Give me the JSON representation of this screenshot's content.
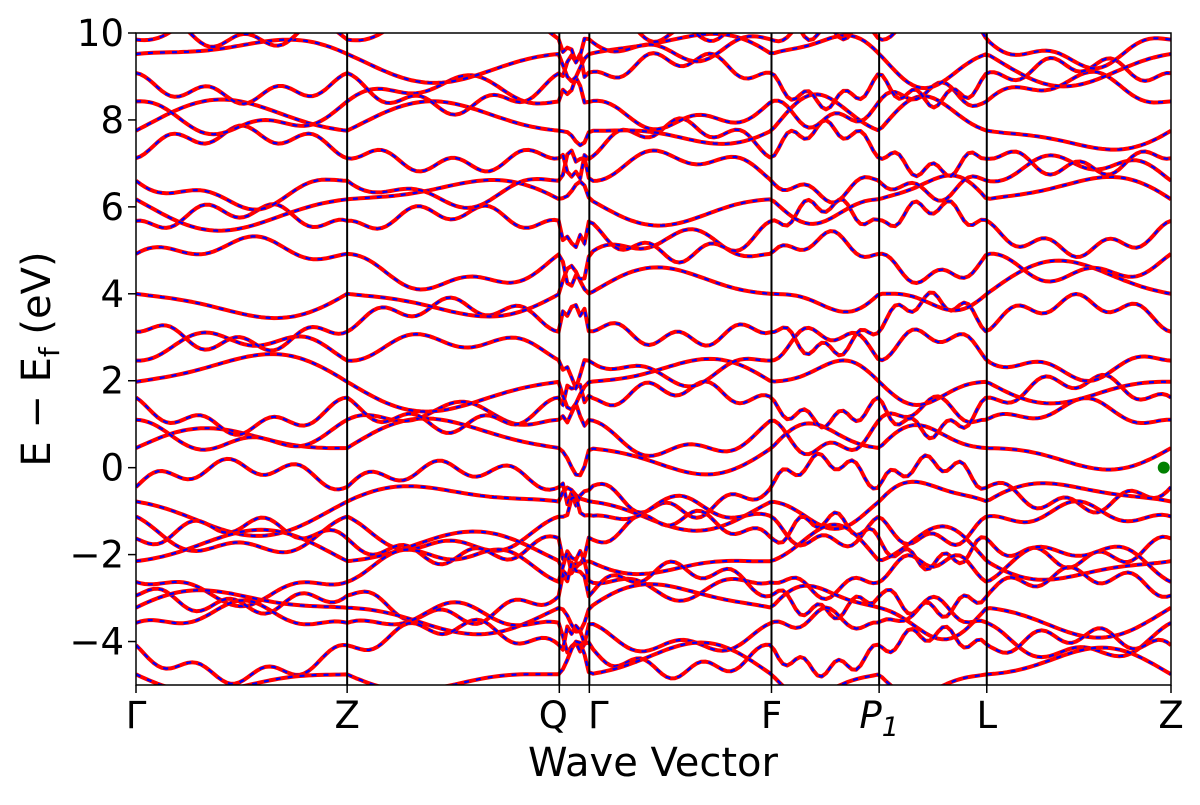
{
  "chart_data": {
    "type": "line",
    "title": "",
    "xlabel": "Wave Vector",
    "ylabel_main": "E − E",
    "ylabel_sub": "f",
    "ylabel_unit": " (eV)",
    "ylim": [
      -5,
      10
    ],
    "yticks": [
      {
        "value": -4,
        "label": "−4"
      },
      {
        "value": -2,
        "label": "−2"
      },
      {
        "value": 0,
        "label": "0"
      },
      {
        "value": 2,
        "label": "2"
      },
      {
        "value": 4,
        "label": "4"
      },
      {
        "value": 6,
        "label": "6"
      },
      {
        "value": 8,
        "label": "8"
      },
      {
        "value": 10,
        "label": "10"
      }
    ],
    "xlim": [
      0,
      1
    ],
    "kpoints": [
      {
        "pos": 0.0,
        "label": "Γ"
      },
      {
        "pos": 0.204,
        "label": "Z"
      },
      {
        "pos": 0.409,
        "label": "Q"
      },
      {
        "pos": 0.438,
        "label": "Γ"
      },
      {
        "pos": 0.614,
        "label": "F"
      },
      {
        "pos": 0.718,
        "label": "P",
        "subscript": "1",
        "italic": true
      },
      {
        "pos": 0.822,
        "label": "L"
      },
      {
        "pos": 1.0,
        "label": "Z"
      }
    ],
    "grid": false,
    "legend": "none",
    "series": [
      {
        "style": "dashed overlay",
        "color": "#0000ff"
      },
      {
        "style": "solid",
        "color": "#ff0000"
      }
    ],
    "markers": [
      {
        "x": 0.993,
        "y": 0.0,
        "color": "#008000"
      }
    ],
    "bands_conduction_base": [
      0.45,
      0.95,
      1.45,
      1.95,
      2.6,
      3.3,
      4.05,
      4.8,
      5.5,
      6.1,
      6.7,
      7.3,
      7.85,
      8.35,
      8.9,
      9.4,
      9.9,
      10.4
    ],
    "bands_valence_base": [
      -0.4,
      -0.9,
      -1.3,
      -1.7,
      -2.05,
      -2.45,
      -2.85,
      -3.3,
      -3.75,
      -4.2,
      -4.7
    ]
  }
}
